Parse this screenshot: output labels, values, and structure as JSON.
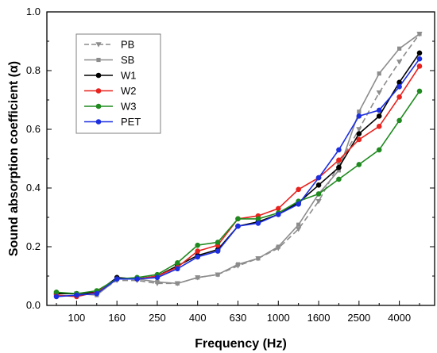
{
  "chart_data": {
    "type": "line",
    "title": "",
    "xlabel": "Frequency (Hz)",
    "ylabel": "Sound absorption coefficient (α)",
    "ylim": [
      0,
      1.0
    ],
    "x_tick_labels": [
      "100",
      "160",
      "250",
      "400",
      "630",
      "1000",
      "1600",
      "2500",
      "4000"
    ],
    "y_tick_labels": [
      "0.0",
      "0.2",
      "0.4",
      "0.6",
      "0.8",
      "1.0"
    ],
    "x_scale": "log (1/3 octave bands)",
    "legend_position": "top-left",
    "grid": false,
    "x": [
      80,
      100,
      125,
      160,
      200,
      250,
      315,
      400,
      500,
      630,
      800,
      1000,
      1250,
      1600,
      2000,
      2500,
      3150,
      4000,
      5000
    ],
    "series": [
      {
        "name": "PB",
        "color": "#8c8c8c",
        "dashed": true,
        "marker": "triangle-down",
        "values": [
          0.04,
          0.04,
          0.04,
          0.085,
          0.085,
          0.075,
          0.075,
          0.095,
          0.105,
          0.135,
          0.16,
          0.195,
          0.26,
          0.355,
          0.48,
          0.6,
          0.725,
          0.83,
          0.925
        ]
      },
      {
        "name": "SB",
        "color": "#8c8c8c",
        "dashed": false,
        "marker": "square",
        "values": [
          0.04,
          0.04,
          0.035,
          0.09,
          0.09,
          0.08,
          0.075,
          0.095,
          0.105,
          0.14,
          0.16,
          0.2,
          0.275,
          0.38,
          0.46,
          0.66,
          0.79,
          0.875,
          0.925
        ]
      },
      {
        "name": "W1",
        "color": "#000000",
        "dashed": false,
        "marker": "circle",
        "values": [
          0.04,
          0.04,
          0.045,
          0.095,
          0.09,
          0.1,
          0.135,
          0.17,
          0.19,
          0.27,
          0.285,
          0.31,
          0.35,
          0.41,
          0.47,
          0.585,
          0.645,
          0.76,
          0.86
        ]
      },
      {
        "name": "W2",
        "color": "#e8231e",
        "dashed": false,
        "marker": "circle",
        "values": [
          0.035,
          0.03,
          0.045,
          0.09,
          0.09,
          0.1,
          0.13,
          0.185,
          0.205,
          0.295,
          0.305,
          0.33,
          0.395,
          0.435,
          0.495,
          0.565,
          0.61,
          0.71,
          0.815
        ]
      },
      {
        "name": "W3",
        "color": "#1f8a1f",
        "dashed": false,
        "marker": "circle",
        "values": [
          0.045,
          0.04,
          0.05,
          0.09,
          0.095,
          0.105,
          0.145,
          0.205,
          0.215,
          0.295,
          0.295,
          0.315,
          0.355,
          0.38,
          0.43,
          0.48,
          0.53,
          0.63,
          0.73
        ]
      },
      {
        "name": "PET",
        "color": "#1c2fe0",
        "dashed": false,
        "marker": "circle",
        "values": [
          0.03,
          0.035,
          0.04,
          0.09,
          0.09,
          0.095,
          0.125,
          0.165,
          0.185,
          0.27,
          0.28,
          0.31,
          0.345,
          0.435,
          0.53,
          0.645,
          0.665,
          0.745,
          0.84
        ]
      }
    ]
  }
}
